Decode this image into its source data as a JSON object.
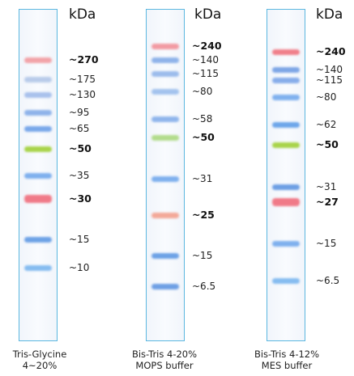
{
  "unit_label": "kDa",
  "ladders": [
    {
      "caption_line1": "Tris-Glycine",
      "caption_line2": "4~20%",
      "bands": [
        {
          "label": "~270",
          "bold": true,
          "color": "#f2a3a8"
        },
        {
          "label": "~175",
          "bold": false,
          "color": "#b8cbea"
        },
        {
          "label": "~130",
          "bold": false,
          "color": "#a9c1ec"
        },
        {
          "label": "~95",
          "bold": false,
          "color": "#8fb3ea"
        },
        {
          "label": "~65",
          "bold": false,
          "color": "#7aa8ea"
        },
        {
          "label": "~50",
          "bold": true,
          "color": "#a8d44a"
        },
        {
          "label": "~35",
          "bold": false,
          "color": "#7fb0ee"
        },
        {
          "label": "~30",
          "bold": true,
          "color": "#f07a88"
        },
        {
          "label": "~15",
          "bold": false,
          "color": "#6ea2e6"
        },
        {
          "label": "~10",
          "bold": false,
          "color": "#86bcf0"
        }
      ]
    },
    {
      "caption_line1": "Bis-Tris 4-20%",
      "caption_line2": "MOPS buffer",
      "bands": [
        {
          "label": "~240",
          "bold": true,
          "color": "#f29aa2"
        },
        {
          "label": "~140",
          "bold": false,
          "color": "#8fb3ea"
        },
        {
          "label": "~115",
          "bold": false,
          "color": "#9cbcec"
        },
        {
          "label": "~80",
          "bold": false,
          "color": "#a3c3ee"
        },
        {
          "label": "~58",
          "bold": false,
          "color": "#8fb5ec"
        },
        {
          "label": "~50",
          "bold": true,
          "color": "#b2dc8c"
        },
        {
          "label": "~31",
          "bold": false,
          "color": "#7fb0ee"
        },
        {
          "label": "~25",
          "bold": true,
          "color": "#f3a898"
        },
        {
          "label": "~15",
          "bold": false,
          "color": "#6ea2e6"
        },
        {
          "label": "~6.5",
          "bold": false,
          "color": "#6e9fe4"
        }
      ]
    },
    {
      "caption_line1": "Bis-Tris 4-12%",
      "caption_line2": "MES buffer",
      "bands": [
        {
          "label": "~240",
          "bold": true,
          "color": "#f07f8a"
        },
        {
          "label": "~140",
          "bold": false,
          "color": "#7ea6e6"
        },
        {
          "label": "~115",
          "bold": false,
          "color": "#86acea"
        },
        {
          "label": "~80",
          "bold": false,
          "color": "#7fb0ee"
        },
        {
          "label": "~62",
          "bold": false,
          "color": "#6ea6ea"
        },
        {
          "label": "~50",
          "bold": true,
          "color": "#a8d44a"
        },
        {
          "label": "~31",
          "bold": false,
          "color": "#6e9fe4"
        },
        {
          "label": "~27",
          "bold": true,
          "color": "#f07a88"
        },
        {
          "label": "~15",
          "bold": false,
          "color": "#7fb0ee"
        },
        {
          "label": "~6.5",
          "bold": false,
          "color": "#86bcf0"
        }
      ]
    }
  ]
}
